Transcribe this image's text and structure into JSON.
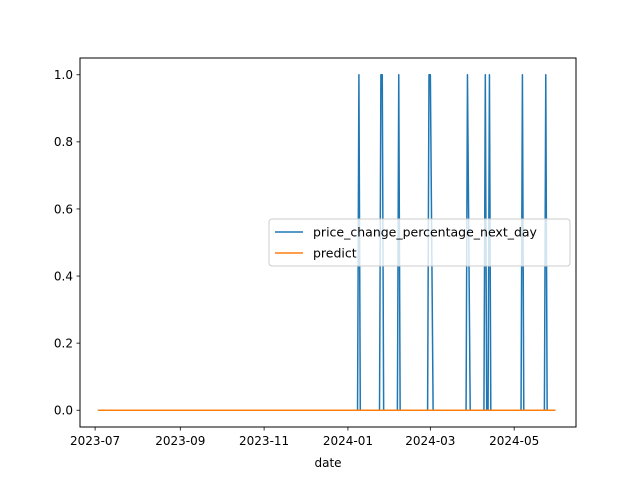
{
  "chart_data": {
    "type": "line",
    "title": "",
    "xlabel": "date",
    "ylabel": "",
    "x_type": "date",
    "xlim": [
      "2023-06-20",
      "2024-06-15"
    ],
    "ylim": [
      -0.05,
      1.05
    ],
    "x_ticks": [
      {
        "value": "2023-07-01",
        "label": "2023-07"
      },
      {
        "value": "2023-09-01",
        "label": "2023-09"
      },
      {
        "value": "2023-11-01",
        "label": "2023-11"
      },
      {
        "value": "2024-01-01",
        "label": "2024-01"
      },
      {
        "value": "2024-03-01",
        "label": "2024-03"
      },
      {
        "value": "2024-05-01",
        "label": "2024-05"
      }
    ],
    "y_ticks": [
      {
        "value": 0.0,
        "label": "0.0"
      },
      {
        "value": 0.2,
        "label": "0.2"
      },
      {
        "value": 0.4,
        "label": "0.4"
      },
      {
        "value": 0.6,
        "label": "0.6"
      },
      {
        "value": 0.8,
        "label": "0.8"
      },
      {
        "value": 1.0,
        "label": "1.0"
      }
    ],
    "grid": false,
    "legend_position": "center-right",
    "series": [
      {
        "name": "price_change_percentage_next_day",
        "color": "#1f77b4",
        "points": [
          {
            "x": "2023-07-03",
            "y": 0
          },
          {
            "x": "2024-01-08",
            "y": 0
          },
          {
            "x": "2024-01-09",
            "y": 1
          },
          {
            "x": "2024-01-10",
            "y": 0
          },
          {
            "x": "2024-01-24",
            "y": 0
          },
          {
            "x": "2024-01-25",
            "y": 1
          },
          {
            "x": "2024-01-26",
            "y": 1
          },
          {
            "x": "2024-01-27",
            "y": 0
          },
          {
            "x": "2024-02-06",
            "y": 0
          },
          {
            "x": "2024-02-07",
            "y": 1
          },
          {
            "x": "2024-02-08",
            "y": 0
          },
          {
            "x": "2024-02-28",
            "y": 0
          },
          {
            "x": "2024-02-29",
            "y": 1
          },
          {
            "x": "2024-03-01",
            "y": 1
          },
          {
            "x": "2024-03-03",
            "y": 0
          },
          {
            "x": "2024-03-27",
            "y": 0
          },
          {
            "x": "2024-03-28",
            "y": 1
          },
          {
            "x": "2024-03-30",
            "y": 0
          },
          {
            "x": "2024-04-09",
            "y": 0
          },
          {
            "x": "2024-04-10",
            "y": 1
          },
          {
            "x": "2024-04-11",
            "y": 0
          },
          {
            "x": "2024-04-12",
            "y": 0
          },
          {
            "x": "2024-04-13",
            "y": 1
          },
          {
            "x": "2024-04-14",
            "y": 0
          },
          {
            "x": "2024-05-06",
            "y": 0
          },
          {
            "x": "2024-05-07",
            "y": 1
          },
          {
            "x": "2024-05-08",
            "y": 0
          },
          {
            "x": "2024-05-23",
            "y": 0
          },
          {
            "x": "2024-05-24",
            "y": 1
          },
          {
            "x": "2024-05-25",
            "y": 0
          },
          {
            "x": "2024-05-31",
            "y": 0
          }
        ]
      },
      {
        "name": "predict",
        "color": "#ff7f0e",
        "points": [
          {
            "x": "2023-07-03",
            "y": 0
          },
          {
            "x": "2024-05-31",
            "y": 0
          }
        ]
      }
    ]
  }
}
